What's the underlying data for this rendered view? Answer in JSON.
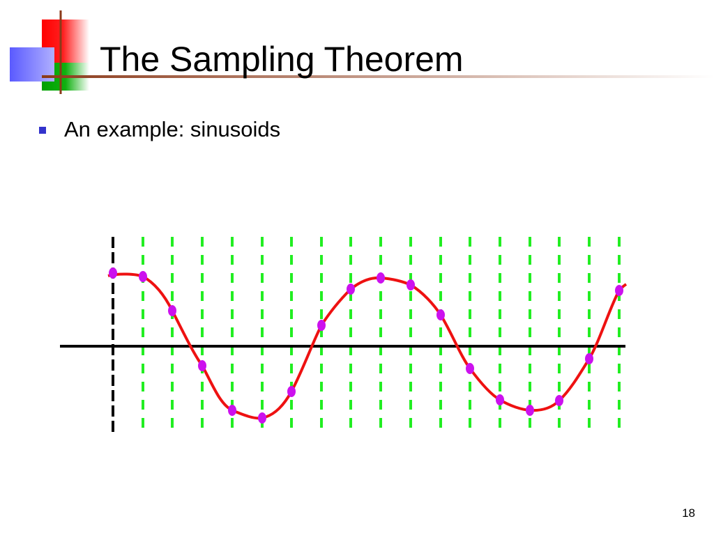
{
  "header": {
    "title": "The Sampling Theorem"
  },
  "bullets": [
    "An example: sinusoids"
  ],
  "footer": {
    "page_number": "18"
  }
}
